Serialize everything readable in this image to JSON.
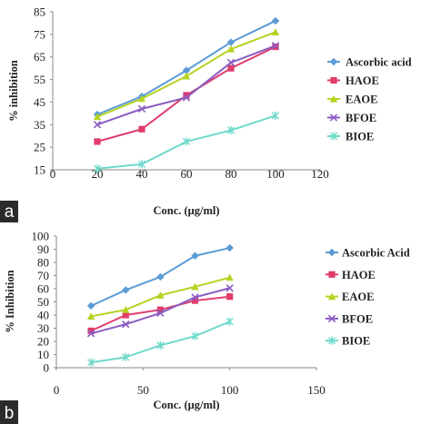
{
  "colors": {
    "ascorbic": "#5b9bd5",
    "haoe": "#e03c6b",
    "eaoe": "#b5d322",
    "bfoe": "#8a5cc2",
    "bioe": "#6fd9cc",
    "panel_tag_bg": "#2b2b2b"
  },
  "chart_data": [
    {
      "type": "line",
      "panel": "a",
      "title": "",
      "xlabel": "Conc. (μg/ml)",
      "ylabel": "% inhibition",
      "xlim": [
        0,
        120
      ],
      "ylim": [
        15,
        85
      ],
      "xticks": [
        "0",
        "20",
        "40",
        "60",
        "80",
        "100",
        "120"
      ],
      "yticks": [
        "15",
        "25",
        "35",
        "45",
        "55",
        "65",
        "75",
        "85"
      ],
      "grid": false,
      "legend_position": "right",
      "series": [
        {
          "name": "Ascorbic acid",
          "x": [
            20,
            40,
            60,
            80,
            100
          ],
          "values": [
            39.5,
            47.5,
            59,
            71.5,
            81
          ],
          "color_key": "ascorbic",
          "marker": "diamond"
        },
        {
          "name": "HAOE",
          "x": [
            20,
            40,
            60,
            80,
            100
          ],
          "values": [
            27.5,
            33,
            48,
            60,
            69.5
          ],
          "color_key": "haoe",
          "marker": "square"
        },
        {
          "name": "EAOE",
          "x": [
            20,
            40,
            60,
            80,
            100
          ],
          "values": [
            38.5,
            46.5,
            56.5,
            68.5,
            76
          ],
          "color_key": "eaoe",
          "marker": "triangle"
        },
        {
          "name": "BFOE",
          "x": [
            20,
            40,
            60,
            80,
            100
          ],
          "values": [
            35,
            42,
            47,
            62.5,
            70
          ],
          "color_key": "bfoe",
          "marker": "x"
        },
        {
          "name": "BIOE",
          "x": [
            20,
            40,
            60,
            80,
            100
          ],
          "values": [
            15.5,
            17.5,
            27.5,
            32.5,
            39
          ],
          "color_key": "bioe",
          "marker": "star"
        }
      ]
    },
    {
      "type": "line",
      "panel": "b",
      "title": "",
      "xlabel": "Conc. (μg/ml)",
      "ylabel": "% Inhibition",
      "xlim": [
        0,
        150
      ],
      "ylim": [
        0,
        100
      ],
      "xticks": [
        "0",
        "50",
        "100",
        "150"
      ],
      "yticks": [
        "0",
        "10",
        "20",
        "30",
        "40",
        "50",
        "60",
        "70",
        "80",
        "90",
        "100"
      ],
      "grid": false,
      "legend_position": "right",
      "series": [
        {
          "name": "Ascorbic Acid",
          "x": [
            20,
            40,
            60,
            80,
            100
          ],
          "values": [
            47,
            59,
            69,
            85,
            91
          ],
          "color_key": "ascorbic",
          "marker": "diamond"
        },
        {
          "name": "HAOE",
          "x": [
            20,
            40,
            60,
            80,
            100
          ],
          "values": [
            28,
            40,
            44,
            51,
            54
          ],
          "color_key": "haoe",
          "marker": "square"
        },
        {
          "name": "EAOE",
          "x": [
            20,
            40,
            60,
            80,
            100
          ],
          "values": [
            39,
            44,
            55,
            61.5,
            68.5
          ],
          "color_key": "eaoe",
          "marker": "triangle"
        },
        {
          "name": "BFOE",
          "x": [
            20,
            40,
            60,
            80,
            100
          ],
          "values": [
            26,
            33,
            41.5,
            53.5,
            60.5
          ],
          "color_key": "bfoe",
          "marker": "x"
        },
        {
          "name": "BIOE",
          "x": [
            20,
            40,
            60,
            80,
            100
          ],
          "values": [
            4,
            8,
            17,
            24,
            35
          ],
          "color_key": "bioe",
          "marker": "star"
        }
      ]
    }
  ]
}
